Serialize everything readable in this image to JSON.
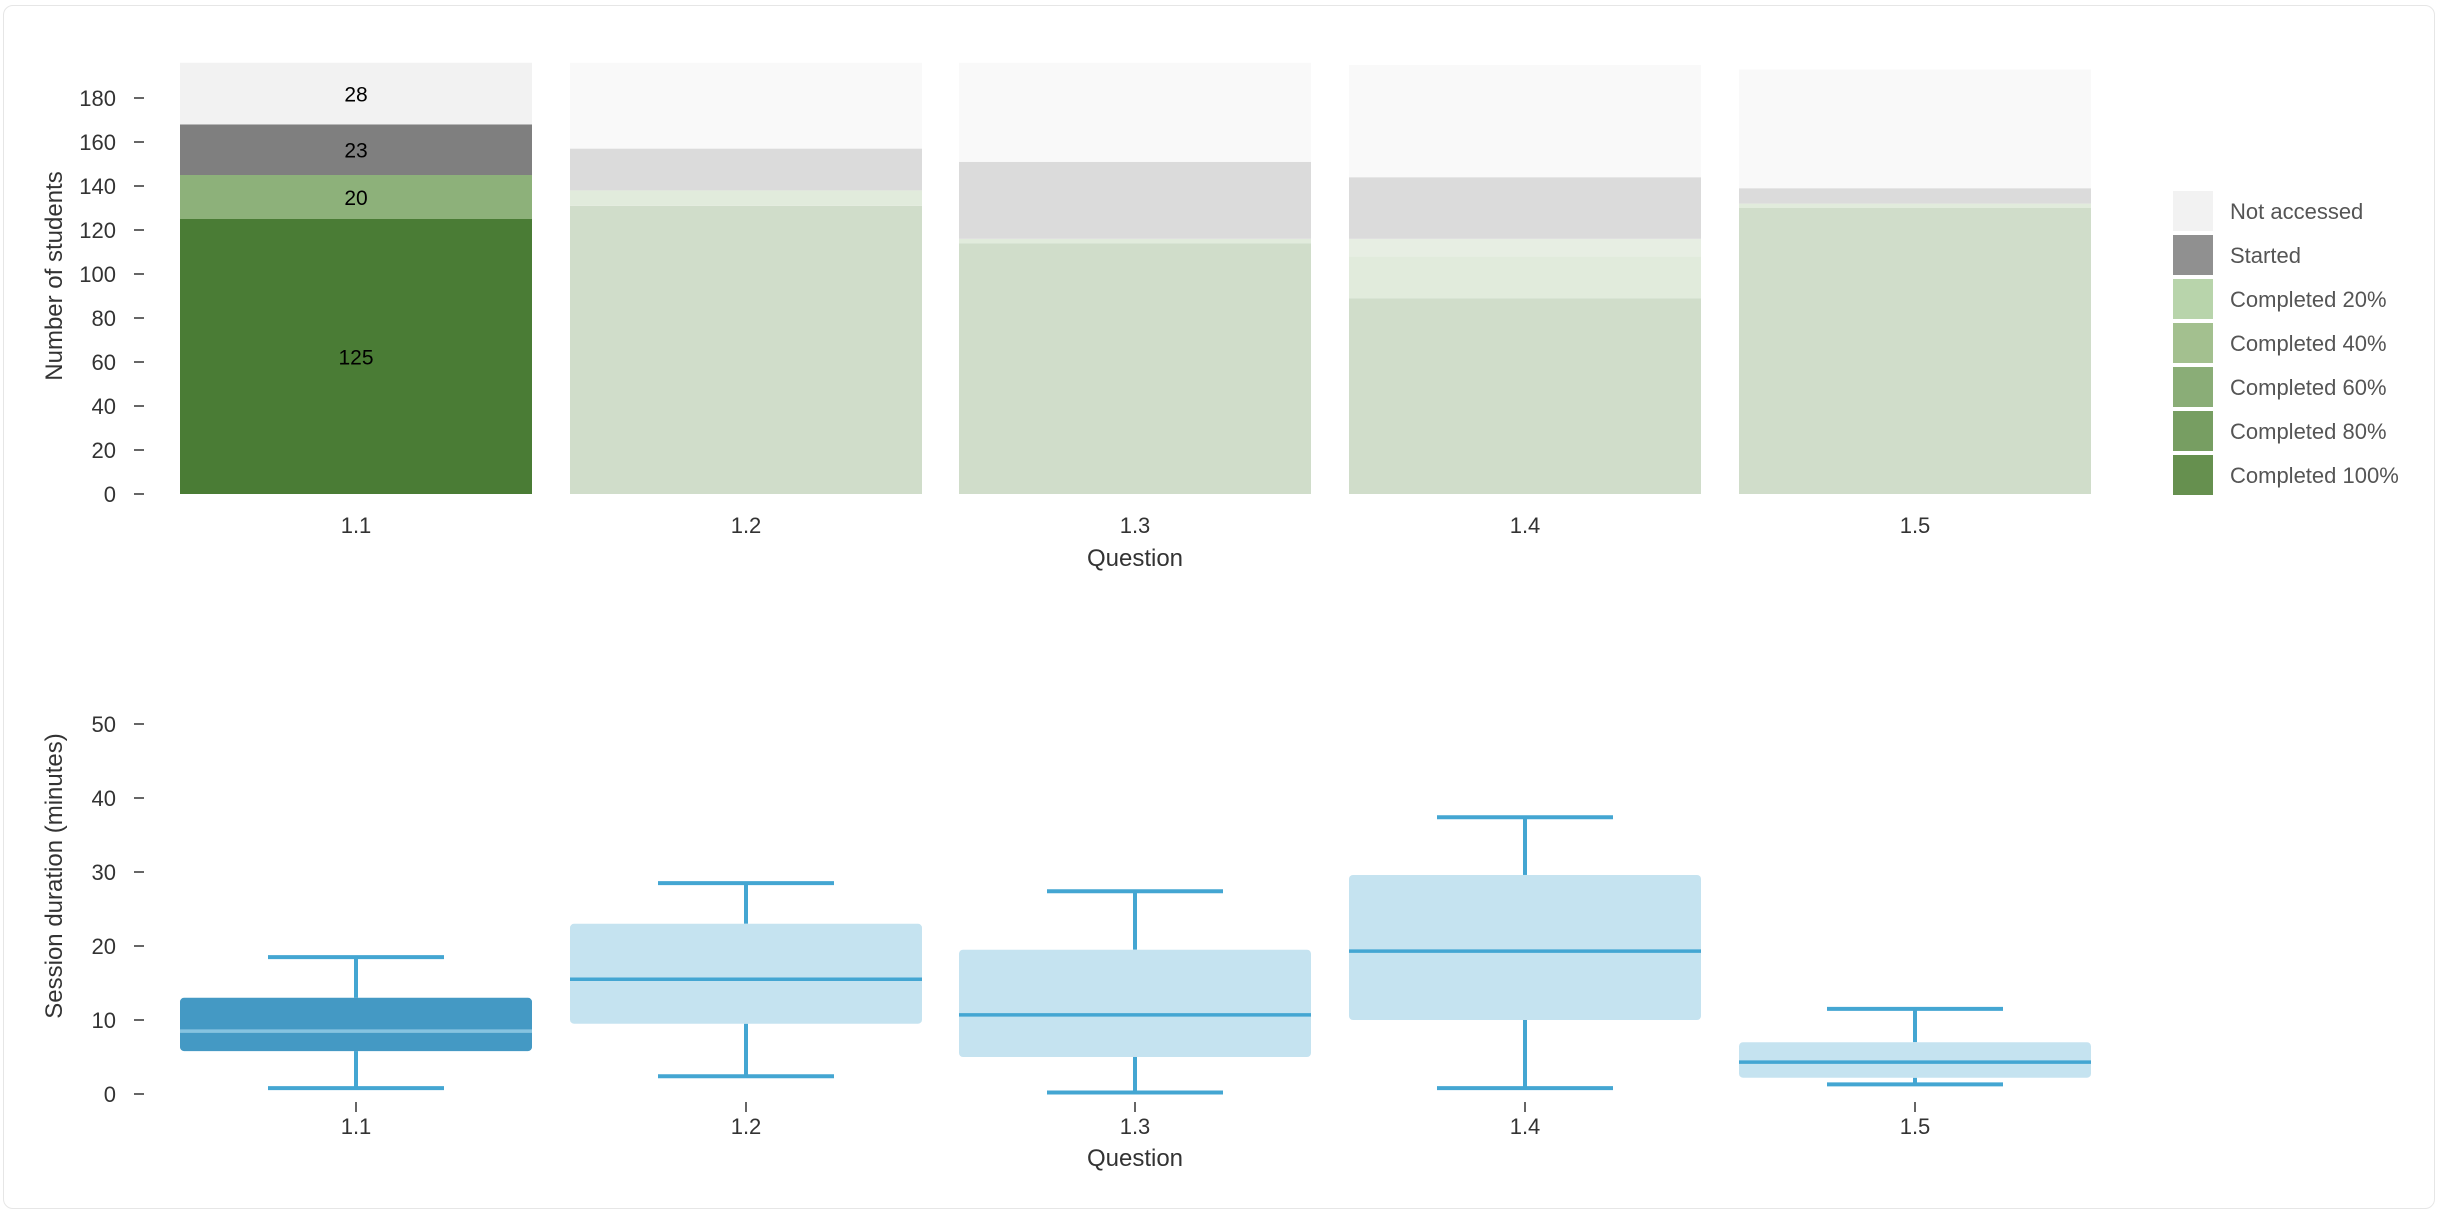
{
  "chart_data": [
    {
      "type": "bar",
      "stacked": true,
      "title": "",
      "xlabel": "Question",
      "ylabel": "Number of students",
      "ylim": [
        0,
        196
      ],
      "yticks": [
        0,
        20,
        40,
        60,
        80,
        100,
        120,
        140,
        160,
        180
      ],
      "categories": [
        "1.1",
        "1.2",
        "1.3",
        "1.4",
        "1.5"
      ],
      "highlighted_category": "1.1",
      "legend_placement": "right",
      "series": [
        {
          "name": "Completed 100%",
          "color": "#4a7c35",
          "values": [
            125,
            131,
            114,
            89,
            130
          ]
        },
        {
          "name": "Completed 80%",
          "color": "#6e9a5c",
          "values": [
            0,
            0,
            0,
            0,
            0
          ]
        },
        {
          "name": "Completed 60%",
          "color": "#8db17a",
          "values": [
            20,
            7,
            2,
            19,
            2
          ]
        },
        {
          "name": "Completed 40%",
          "color": "#a3bf93",
          "values": [
            0,
            0,
            0,
            8,
            0
          ]
        },
        {
          "name": "Completed 20%",
          "color": "#b8cfab",
          "values": [
            0,
            0,
            0,
            0,
            0
          ]
        },
        {
          "name": "Started",
          "color": "#7f7f7f",
          "values": [
            23,
            19,
            35,
            28,
            7
          ]
        },
        {
          "name": "Not accessed",
          "color": "#f2f2f2",
          "values": [
            28,
            39,
            45,
            51,
            54
          ]
        }
      ],
      "data_labels": [
        "125",
        "20",
        "23",
        "28"
      ],
      "legend": [
        {
          "name": "Not accessed",
          "color": "#f2f2f2"
        },
        {
          "name": "Started",
          "color": "#909090"
        },
        {
          "name": "Completed 20%",
          "color": "#b8d4ab"
        },
        {
          "name": "Completed 40%",
          "color": "#a3c08f"
        },
        {
          "name": "Completed 60%",
          "color": "#8aad77"
        },
        {
          "name": "Completed 80%",
          "color": "#779e62"
        },
        {
          "name": "Completed 100%",
          "color": "#66904f"
        }
      ]
    },
    {
      "type": "boxplot",
      "title": "",
      "xlabel": "Question",
      "ylabel": "Session duration (minutes)",
      "ylim": [
        0,
        52
      ],
      "yticks": [
        0,
        10,
        20,
        30,
        40,
        50
      ],
      "categories": [
        "1.1",
        "1.2",
        "1.3",
        "1.4",
        "1.5"
      ],
      "highlighted_category": "1.1",
      "colors": {
        "highlight_box": "#4499c4",
        "box": "#c5e3f0",
        "line": "#44a6d2",
        "highlight_median": "#86c3e0"
      },
      "boxes": [
        {
          "category": "1.1",
          "min": 0.8,
          "q1": 5.8,
          "median": 8.5,
          "q3": 13.0,
          "max": 18.5
        },
        {
          "category": "1.2",
          "min": 2.4,
          "q1": 9.5,
          "median": 15.5,
          "q3": 23.0,
          "max": 28.5
        },
        {
          "category": "1.3",
          "min": 0.2,
          "q1": 5.0,
          "median": 10.7,
          "q3": 19.5,
          "max": 27.4
        },
        {
          "category": "1.4",
          "min": 0.8,
          "q1": 10.0,
          "median": 19.3,
          "q3": 29.6,
          "max": 37.4
        },
        {
          "category": "1.5",
          "min": 1.3,
          "q1": 2.2,
          "median": 4.3,
          "q3": 7.0,
          "max": 11.5
        }
      ]
    }
  ]
}
